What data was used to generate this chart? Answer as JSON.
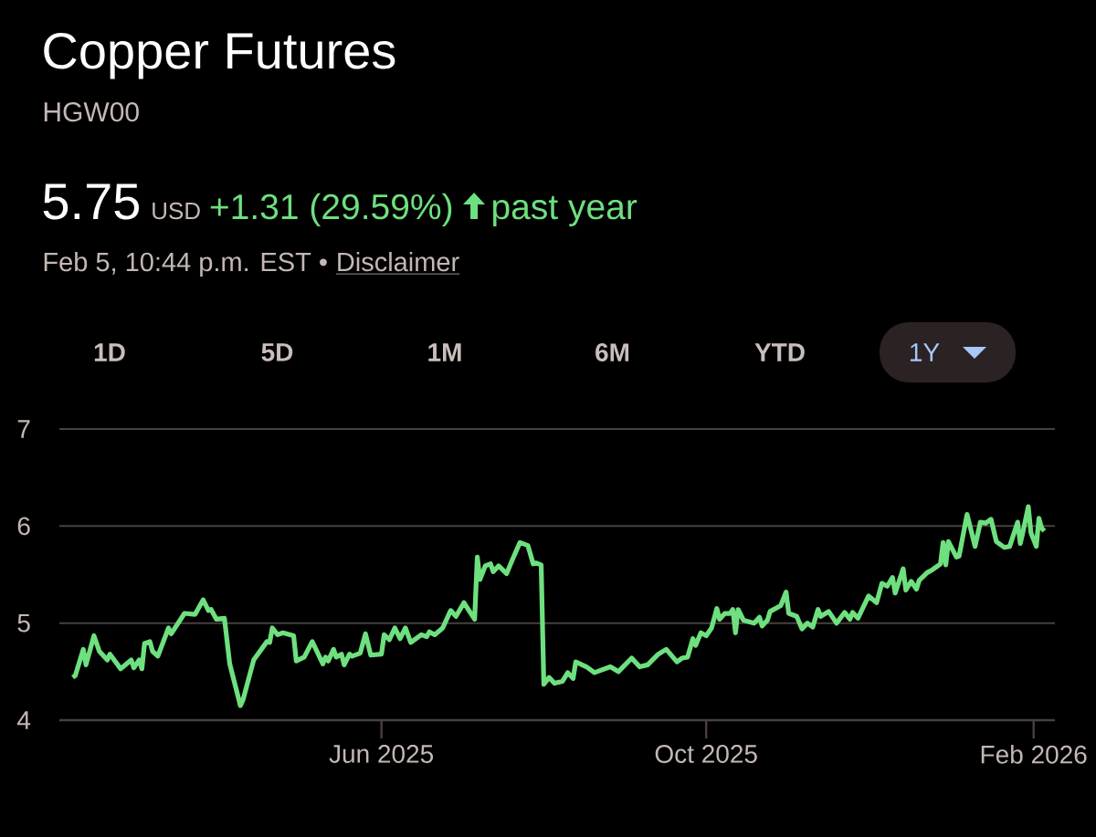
{
  "chart_data": {
    "type": "line",
    "title": "Copper Futures",
    "subtitle": "HGW00",
    "annotations": [
      "5.75",
      "USD",
      "+1.31 (29.59%)",
      "past year",
      "Feb 5, 10:44 p.m. EST •",
      "Disclaimer",
      "1D",
      "5D",
      "1M",
      "6M",
      "YTD",
      "1Y"
    ],
    "x": [
      "2025-02-05",
      "2025-02-06",
      "2025-02-09",
      "2025-02-10",
      "2025-02-13",
      "2025-02-15",
      "2025-02-18",
      "2025-02-19",
      "2025-02-23",
      "2025-02-27",
      "2025-02-28",
      "2025-03-02",
      "2025-03-03",
      "2025-03-04",
      "2025-03-06",
      "2025-03-07",
      "2025-03-09",
      "2025-03-13",
      "2025-03-14",
      "2025-03-19",
      "2025-03-23",
      "2025-03-26",
      "2025-03-28",
      "2025-03-29",
      "2025-03-31",
      "2025-04-03",
      "2025-04-05",
      "2025-04-09",
      "2025-04-10",
      "2025-04-14",
      "2025-04-19",
      "2025-04-20",
      "2025-04-21",
      "2025-04-23",
      "2025-04-25",
      "2025-04-29",
      "2025-04-30",
      "2025-05-03",
      "2025-05-06",
      "2025-05-10",
      "2025-05-11",
      "2025-05-12",
      "2025-05-14",
      "2025-05-15",
      "2025-05-17",
      "2025-05-18",
      "2025-05-20",
      "2025-05-21",
      "2025-05-24",
      "2025-05-26",
      "2025-05-28",
      "2025-06-01",
      "2025-06-02",
      "2025-06-04",
      "2025-06-06",
      "2025-06-08",
      "2025-06-10",
      "2025-06-12",
      "2025-06-16",
      "2025-06-18",
      "2025-06-19",
      "2025-06-21",
      "2025-06-24",
      "2025-06-27",
      "2025-06-29",
      "2025-07-02",
      "2025-07-06",
      "2025-07-07",
      "2025-07-08",
      "2025-07-10",
      "2025-07-12",
      "2025-07-13",
      "2025-07-15",
      "2025-07-18",
      "2025-07-20",
      "2025-07-23",
      "2025-07-26",
      "2025-07-28",
      "2025-07-29",
      "2025-07-31",
      "2025-08-01",
      "2025-08-03",
      "2025-08-05",
      "2025-08-08",
      "2025-08-10",
      "2025-08-12",
      "2025-08-13",
      "2025-08-17",
      "2025-08-20",
      "2025-08-26",
      "2025-08-29",
      "2025-09-03",
      "2025-09-06",
      "2025-09-09",
      "2025-09-13",
      "2025-09-16",
      "2025-09-20",
      "2025-09-22",
      "2025-09-24",
      "2025-09-26",
      "2025-09-27",
      "2025-09-29",
      "2025-10-01",
      "2025-10-03",
      "2025-10-05",
      "2025-10-06",
      "2025-10-08",
      "2025-10-10",
      "2025-10-11",
      "2025-10-12",
      "2025-10-13",
      "2025-10-15",
      "2025-10-19",
      "2025-10-21",
      "2025-10-22",
      "2025-10-24",
      "2025-10-25",
      "2025-10-29",
      "2025-10-31",
      "2025-11-01",
      "2025-11-04",
      "2025-11-06",
      "2025-11-08",
      "2025-11-10",
      "2025-11-12",
      "2025-11-13",
      "2025-11-16",
      "2025-11-19",
      "2025-11-22",
      "2025-11-24",
      "2025-11-25",
      "2025-11-27",
      "2025-12-01",
      "2025-12-04",
      "2025-12-06",
      "2025-12-08",
      "2025-12-10",
      "2025-12-11",
      "2025-12-14",
      "2025-12-15",
      "2025-12-17",
      "2025-12-19",
      "2025-12-20",
      "2025-12-23",
      "2025-12-25",
      "2025-12-28",
      "2025-12-29",
      "2025-12-30",
      "2025-12-31",
      "2026-01-03",
      "2026-01-04",
      "2026-01-07",
      "2026-01-10",
      "2026-01-12",
      "2026-01-14",
      "2026-01-16",
      "2026-01-18",
      "2026-01-21",
      "2026-01-23",
      "2026-01-26",
      "2026-01-27",
      "2026-01-28",
      "2026-01-30",
      "2026-01-31",
      "2026-02-02",
      "2026-02-03",
      "2026-02-04",
      "2026-02-05"
    ],
    "series": [
      {
        "color": "#6ee07f",
        "values": [
          4.44,
          4.46,
          4.73,
          4.57,
          4.87,
          4.71,
          4.62,
          4.68,
          4.53,
          4.62,
          4.54,
          4.62,
          4.53,
          4.79,
          4.81,
          4.71,
          4.66,
          4.95,
          4.89,
          5.1,
          5.09,
          5.24,
          5.13,
          5.14,
          5.04,
          5.05,
          4.58,
          4.15,
          4.21,
          4.62,
          4.81,
          4.8,
          4.95,
          4.88,
          4.9,
          4.87,
          4.61,
          4.65,
          4.81,
          4.58,
          4.65,
          4.61,
          4.73,
          4.65,
          4.68,
          4.57,
          4.68,
          4.66,
          4.69,
          4.89,
          4.67,
          4.68,
          4.88,
          4.83,
          4.95,
          4.84,
          4.95,
          4.8,
          4.88,
          4.86,
          4.91,
          4.88,
          4.95,
          5.13,
          5.07,
          5.21,
          5.04,
          5.68,
          5.45,
          5.59,
          5.61,
          5.53,
          5.59,
          5.51,
          5.64,
          5.83,
          5.8,
          5.61,
          5.62,
          5.6,
          4.37,
          4.44,
          4.38,
          4.4,
          4.49,
          4.43,
          4.6,
          4.55,
          4.49,
          4.55,
          4.5,
          4.64,
          4.55,
          4.57,
          4.68,
          4.73,
          4.6,
          4.64,
          4.65,
          4.84,
          4.77,
          4.9,
          4.87,
          4.95,
          5.15,
          5.04,
          5.1,
          5.1,
          5.14,
          4.9,
          5.14,
          5.03,
          5.0,
          5.06,
          4.97,
          5.03,
          5.12,
          5.18,
          5.32,
          5.1,
          5.07,
          4.94,
          5.0,
          4.96,
          5.14,
          5.07,
          5.12,
          5.0,
          5.11,
          5.04,
          5.11,
          5.05,
          5.28,
          5.21,
          5.41,
          5.38,
          5.47,
          5.31,
          5.56,
          5.34,
          5.43,
          5.35,
          5.44,
          5.52,
          5.55,
          5.61,
          5.83,
          5.6,
          5.84,
          5.68,
          5.69,
          6.12,
          5.79,
          6.04,
          6.03,
          6.07,
          5.84,
          5.78,
          5.79,
          6.04,
          5.82,
          5.94,
          6.2,
          5.93,
          5.79,
          6.08,
          5.98,
          5.95
        ]
      }
    ],
    "xlim": [
      "2025-01-31",
      "2026-02-09"
    ],
    "ylim": [
      4,
      7
    ],
    "xticks": [
      {
        "value": "2025-06-01",
        "label": "Jun 2025"
      },
      {
        "value": "2025-10-01",
        "label": "Oct 2025"
      },
      {
        "value": "2026-02-01",
        "label": "Feb 2026"
      }
    ],
    "yticks": [
      4,
      5,
      6,
      7
    ],
    "grid": "y"
  }
}
